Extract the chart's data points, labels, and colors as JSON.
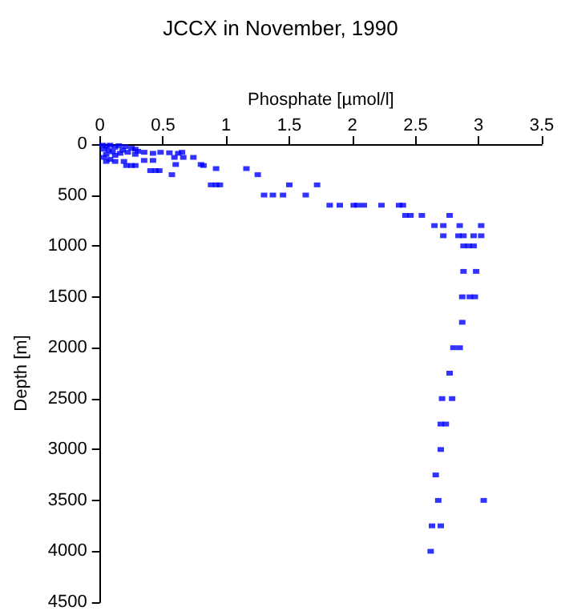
{
  "chart_data": {
    "type": "scatter",
    "title": "JCCX in November, 1990",
    "xlabel": "Phosphate [µmol/l]",
    "ylabel": "Depth [m]",
    "marker": "square",
    "xlim": [
      0,
      3.5
    ],
    "xticks": [
      0,
      0.5,
      1,
      1.5,
      2,
      2.5,
      3,
      3.5
    ],
    "ylim": [
      4500,
      0
    ],
    "yticks": [
      0,
      500,
      1000,
      1500,
      2000,
      2500,
      3000,
      3500,
      4000,
      4500
    ],
    "series": [
      {
        "color": "#0000ff",
        "x": [
          0.02,
          0.05,
          0.08,
          0.12,
          0.15,
          0.2,
          0.25,
          0.03,
          0.07,
          0.1,
          0.18,
          0.22,
          0.28,
          0.3,
          0.05,
          0.12,
          0.16,
          0.03,
          0.08,
          0.05,
          0.12,
          0.19,
          0.28,
          0.35,
          0.42,
          0.48,
          0.55,
          0.62,
          0.65,
          0.59,
          0.66,
          0.74,
          0.35,
          0.42,
          0.6,
          0.8,
          0.21,
          0.25,
          0.28,
          0.82,
          0.92,
          1.16,
          0.4,
          0.44,
          0.47,
          0.57,
          1.25,
          0.88,
          0.92,
          0.95,
          1.5,
          1.72,
          1.3,
          1.37,
          1.45,
          1.63,
          1.82,
          1.9,
          2.01,
          2.04,
          2.09,
          2.23,
          2.37,
          2.4,
          2.42,
          2.46,
          2.55,
          2.77,
          2.65,
          2.72,
          2.85,
          3.02,
          2.72,
          2.84,
          2.88,
          2.96,
          3.02,
          2.88,
          2.92,
          2.96,
          2.88,
          2.98,
          2.87,
          2.93,
          2.97,
          2.87,
          2.8,
          2.85,
          2.77,
          2.71,
          2.79,
          2.7,
          2.74,
          2.7,
          2.66,
          2.68,
          3.04,
          2.63,
          2.7,
          2.62
        ],
        "values": [
          10,
          20,
          10,
          30,
          15,
          25,
          40,
          50,
          60,
          75,
          60,
          80,
          50,
          70,
          100,
          110,
          90,
          130,
          150,
          170,
          170,
          170,
          100,
          80,
          90,
          80,
          85,
          90,
          80,
          130,
          130,
          130,
          160,
          160,
          200,
          200,
          210,
          210,
          210,
          210,
          240,
          240,
          260,
          260,
          260,
          300,
          300,
          400,
          400,
          400,
          400,
          400,
          500,
          500,
          500,
          500,
          600,
          600,
          600,
          600,
          600,
          600,
          600,
          600,
          700,
          700,
          700,
          700,
          800,
          800,
          800,
          800,
          900,
          900,
          900,
          900,
          900,
          1000,
          1000,
          1000,
          1250,
          1250,
          1500,
          1500,
          1500,
          1750,
          2000,
          2000,
          2250,
          2500,
          2500,
          2750,
          2750,
          3000,
          3250,
          3500,
          3500,
          3750,
          3750,
          4000
        ]
      }
    ]
  }
}
